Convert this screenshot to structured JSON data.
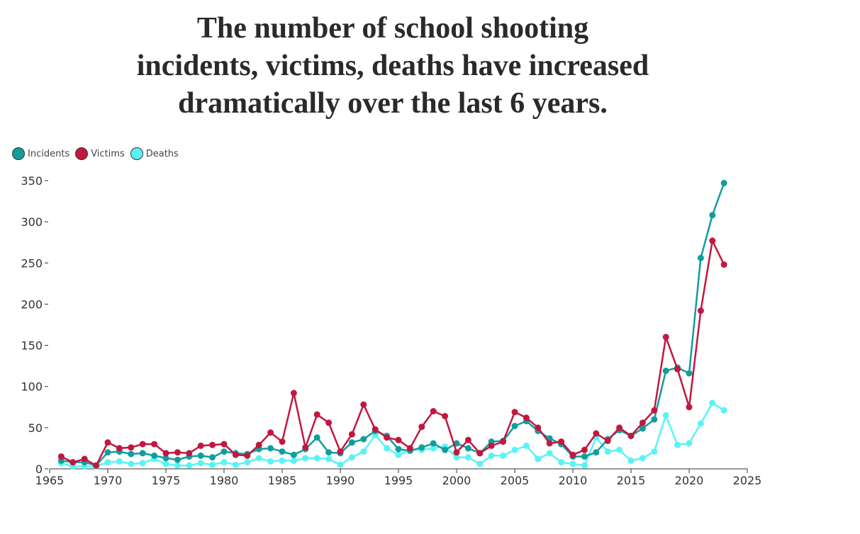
{
  "title_lines": [
    "The number of school shooting",
    "incidents, victims, deaths have increased",
    "dramatically over the last 6 years."
  ],
  "chart_data": {
    "type": "line",
    "title": "The number of school shooting incidents, victims, deaths have increased dramatically over the last 6 years.",
    "xlabel": "",
    "ylabel": "",
    "xlim": [
      1965,
      2025
    ],
    "ylim": [
      0,
      350
    ],
    "x_ticks": [
      1965,
      1970,
      1975,
      1980,
      1985,
      1990,
      1995,
      2000,
      2005,
      2010,
      2015,
      2020,
      2025
    ],
    "y_ticks": [
      0,
      50,
      100,
      150,
      200,
      250,
      300,
      350
    ],
    "legend_position": "top-left",
    "grid": false,
    "x": [
      1966,
      1967,
      1968,
      1969,
      1970,
      1971,
      1972,
      1973,
      1974,
      1975,
      1976,
      1977,
      1978,
      1979,
      1980,
      1981,
      1982,
      1983,
      1984,
      1985,
      1986,
      1987,
      1988,
      1989,
      1990,
      1991,
      1992,
      1993,
      1994,
      1995,
      1996,
      1997,
      1998,
      1999,
      2000,
      2001,
      2002,
      2003,
      2004,
      2005,
      2006,
      2007,
      2008,
      2009,
      2010,
      2011,
      2012,
      2013,
      2014,
      2015,
      2016,
      2017,
      2018,
      2019,
      2020,
      2021,
      2022,
      2023
    ],
    "series": [
      {
        "name": "Incidents",
        "color": "#129d9d",
        "values": [
          10,
          8,
          8,
          4,
          20,
          21,
          18,
          19,
          16,
          13,
          11,
          15,
          16,
          14,
          21,
          19,
          18,
          24,
          25,
          21,
          17,
          24,
          38,
          20,
          19,
          32,
          36,
          46,
          40,
          24,
          22,
          26,
          31,
          23,
          31,
          25,
          19,
          33,
          34,
          52,
          58,
          46,
          37,
          30,
          15,
          15,
          20,
          36,
          47,
          40,
          49,
          60,
          119,
          123,
          116,
          256,
          308,
          347
        ]
      },
      {
        "name": "Victims",
        "color": "#c2173f",
        "values": [
          15,
          8,
          12,
          4,
          32,
          25,
          26,
          30,
          30,
          19,
          20,
          19,
          28,
          29,
          30,
          17,
          16,
          29,
          44,
          33,
          92,
          26,
          66,
          56,
          21,
          42,
          78,
          48,
          38,
          35,
          25,
          51,
          70,
          64,
          20,
          35,
          19,
          28,
          33,
          69,
          62,
          50,
          31,
          33,
          17,
          23,
          43,
          34,
          50,
          40,
          56,
          71,
          160,
          121,
          75,
          192,
          277,
          248
        ]
      },
      {
        "name": "Deaths",
        "color": "#5af3f5",
        "values": [
          7,
          3,
          3,
          3,
          8,
          9,
          6,
          7,
          12,
          6,
          4,
          4,
          7,
          5,
          8,
          5,
          8,
          13,
          9,
          10,
          10,
          13,
          13,
          12,
          5,
          14,
          21,
          41,
          25,
          17,
          23,
          23,
          25,
          27,
          14,
          14,
          6,
          16,
          16,
          23,
          28,
          12,
          19,
          8,
          6,
          4,
          38,
          21,
          23,
          10,
          13,
          21,
          65,
          29,
          31,
          55,
          80,
          71
        ]
      }
    ]
  }
}
